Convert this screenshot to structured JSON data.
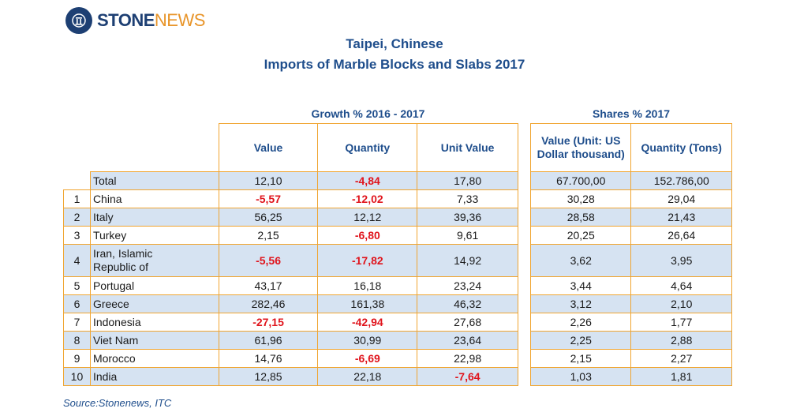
{
  "logo": {
    "stone": "STONE",
    "news": "NEWS",
    "icon": "column-icon"
  },
  "title_line1": "Taipei, Chinese",
  "title_line2": "Imports of Marble Blocks and Slabs 2017",
  "growth_header": "Growth % 2016 - 2017",
  "shares_header": "Shares % 2017",
  "columns": {
    "value": "Value",
    "quantity": "Quantity",
    "unit_value": "Unit Value",
    "share_value": "Value (Unit: US Dollar thousand)",
    "share_quantity": "Quantity (Tons)"
  },
  "total": {
    "name": "Total",
    "value": "12,10",
    "quantity": "-4,84",
    "unit_value": "17,80",
    "share_value": "67.700,00",
    "share_quantity": "152.786,00"
  },
  "rows": [
    {
      "rank": "1",
      "name": "China",
      "value": "-5,57",
      "quantity": "-12,02",
      "unit_value": "7,33",
      "share_value": "30,28",
      "share_quantity": "29,04"
    },
    {
      "rank": "2",
      "name": "Italy",
      "value": "56,25",
      "quantity": "12,12",
      "unit_value": "39,36",
      "share_value": "28,58",
      "share_quantity": "21,43"
    },
    {
      "rank": "3",
      "name": "Turkey",
      "value": "2,15",
      "quantity": "-6,80",
      "unit_value": "9,61",
      "share_value": "20,25",
      "share_quantity": "26,64"
    },
    {
      "rank": "4",
      "name_line1": "Iran, Islamic",
      "name_line2": "Republic of",
      "value": "-5,56",
      "quantity": "-17,82",
      "unit_value": "14,92",
      "share_value": "3,62",
      "share_quantity": "3,95"
    },
    {
      "rank": "5",
      "name": "Portugal",
      "value": "43,17",
      "quantity": "16,18",
      "unit_value": "23,24",
      "share_value": "3,44",
      "share_quantity": "4,64"
    },
    {
      "rank": "6",
      "name": "Greece",
      "value": "282,46",
      "quantity": "161,38",
      "unit_value": "46,32",
      "share_value": "3,12",
      "share_quantity": "2,10"
    },
    {
      "rank": "7",
      "name": "Indonesia",
      "value": "-27,15",
      "quantity": "-42,94",
      "unit_value": "27,68",
      "share_value": "2,26",
      "share_quantity": "1,77"
    },
    {
      "rank": "8",
      "name": "Viet Nam",
      "value": "61,96",
      "quantity": "30,99",
      "unit_value": "23,64",
      "share_value": "2,25",
      "share_quantity": "2,88"
    },
    {
      "rank": "9",
      "name": "Morocco",
      "value": "14,76",
      "quantity": "-6,69",
      "unit_value": "22,98",
      "share_value": "2,15",
      "share_quantity": "2,27"
    },
    {
      "rank": "10",
      "name": "India",
      "value": "12,85",
      "quantity": "22,18",
      "unit_value": "-7,64",
      "share_value": "1,03",
      "share_quantity": "1,81"
    }
  ],
  "source": "Source:Stonenews, ITC",
  "colors": {
    "border": "#f0a531",
    "shade": "#d6e3f2",
    "negative": "#e0141c",
    "heading": "#1f4e8c"
  }
}
